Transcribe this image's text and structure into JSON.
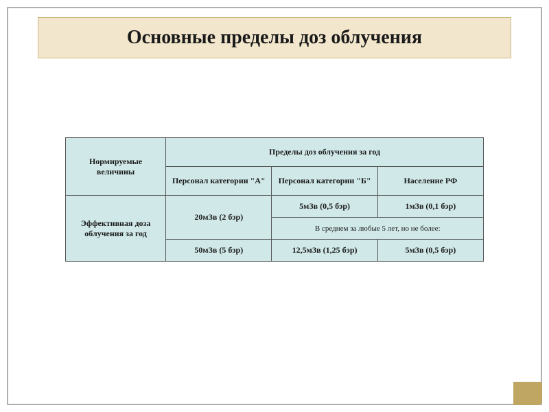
{
  "title": "Основные пределы доз облучения",
  "table": {
    "rowHeader": "Нормируемые величины",
    "superHeader": "Пределы доз облучения за год",
    "columns": [
      "Персонал категории \"А\"",
      "Персонал категории \"Б\"",
      "Население РФ"
    ],
    "rowLabel": "Эффективная доза облучения за год",
    "row1": [
      "20мЗв (2 бэр)",
      "5мЗв (0,5 бэр)",
      "1мЗв (0,1 бэр)"
    ],
    "note": "В среднем за любые 5 лет, но не более:",
    "row2": [
      "50мЗв (5 бэр)",
      "12,5мЗв (1,25 бэр)",
      "5мЗв (0,5 бэр)"
    ]
  },
  "colors": {
    "titleBg": "#f2e6cc",
    "titleBorder": "#cbb880",
    "cellBg": "#d0e8e8",
    "cellBorder": "#555555",
    "slideBorder": "#b0b0b0",
    "accent": "#bfa663",
    "text": "#1a1a1a"
  },
  "fonts": {
    "titleSize": 28,
    "cellSize": 12,
    "noteSize": 11,
    "family": "Times New Roman"
  }
}
